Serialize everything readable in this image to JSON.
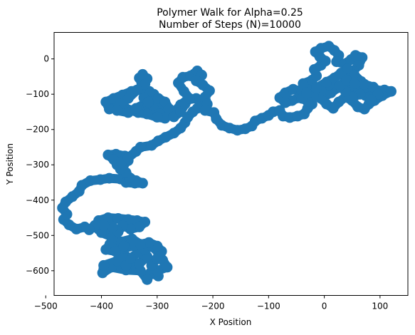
{
  "chart_data": {
    "type": "scatter",
    "title": "Polymer Walk for Alpha=0.25",
    "subtitle": "Number of Steps (N)=10000",
    "xlabel": "X Position",
    "ylabel": "Y Position",
    "xlim": [
      -485,
      150
    ],
    "ylim": [
      -670,
      75
    ],
    "x_ticks": [
      -500,
      -400,
      -300,
      -200,
      -100,
      0,
      100
    ],
    "y_ticks": [
      0,
      -100,
      -200,
      -300,
      -400,
      -500,
      -600
    ],
    "grid": false,
    "series_color": "#1f77b4",
    "walk_vertices": [
      [
        -298,
        -615
      ],
      [
        -312,
        -606
      ],
      [
        -318,
        -625
      ],
      [
        -330,
        -600
      ],
      [
        -356,
        -598
      ],
      [
        -382,
        -590
      ],
      [
        -398,
        -606
      ],
      [
        -396,
        -585
      ],
      [
        -372,
        -572
      ],
      [
        -356,
        -585
      ],
      [
        -332,
        -580
      ],
      [
        -318,
        -560
      ],
      [
        -334,
        -548
      ],
      [
        -348,
        -565
      ],
      [
        -362,
        -552
      ],
      [
        -358,
        -536
      ],
      [
        -340,
        -528
      ],
      [
        -322,
        -540
      ],
      [
        -310,
        -530
      ],
      [
        -298,
        -548
      ],
      [
        -290,
        -570
      ],
      [
        -282,
        -590
      ],
      [
        -300,
        -600
      ],
      [
        -310,
        -585
      ],
      [
        -300,
        -565
      ],
      [
        -292,
        -545
      ],
      [
        -300,
        -530
      ],
      [
        -315,
        -520
      ],
      [
        -330,
        -525
      ],
      [
        -345,
        -510
      ],
      [
        -365,
        -518
      ],
      [
        -385,
        -525
      ],
      [
        -392,
        -540
      ],
      [
        -375,
        -545
      ],
      [
        -360,
        -530
      ],
      [
        -380,
        -505
      ],
      [
        -400,
        -492
      ],
      [
        -412,
        -475
      ],
      [
        -405,
        -458
      ],
      [
        -388,
        -450
      ],
      [
        -370,
        -452
      ],
      [
        -352,
        -455
      ],
      [
        -336,
        -458
      ],
      [
        -322,
        -462
      ],
      [
        -332,
        -476
      ],
      [
        -348,
        -482
      ],
      [
        -362,
        -472
      ],
      [
        -370,
        -490
      ],
      [
        -380,
        -476
      ],
      [
        -396,
        -470
      ],
      [
        -412,
        -472
      ],
      [
        -422,
        -484
      ],
      [
        -430,
        -476
      ],
      [
        -445,
        -482
      ],
      [
        -458,
        -470
      ],
      [
        -468,
        -455
      ],
      [
        -462,
        -440
      ],
      [
        -470,
        -422
      ],
      [
        -464,
        -405
      ],
      [
        -452,
        -390
      ],
      [
        -440,
        -375
      ],
      [
        -435,
        -358
      ],
      [
        -420,
        -345
      ],
      [
        -402,
        -342
      ],
      [
        -386,
        -338
      ],
      [
        -366,
        -340
      ],
      [
        -348,
        -338
      ],
      [
        -338,
        -345
      ],
      [
        -326,
        -352
      ],
      [
        -340,
        -352
      ],
      [
        -356,
        -350
      ],
      [
        -350,
        -336
      ],
      [
        -356,
        -322
      ],
      [
        -366,
        -312
      ],
      [
        -360,
        -300
      ],
      [
        -352,
        -288
      ],
      [
        -358,
        -275
      ],
      [
        -374,
        -270
      ],
      [
        -388,
        -272
      ],
      [
        -378,
        -285
      ],
      [
        -372,
        -300
      ],
      [
        -364,
        -292
      ],
      [
        -352,
        -280
      ],
      [
        -338,
        -262
      ],
      [
        -330,
        -250
      ],
      [
        -310,
        -245
      ],
      [
        -298,
        -232
      ],
      [
        -285,
        -222
      ],
      [
        -270,
        -210
      ],
      [
        -258,
        -196
      ],
      [
        -250,
        -180
      ],
      [
        -245,
        -165
      ],
      [
        -236,
        -150
      ],
      [
        -228,
        -140
      ],
      [
        -220,
        -126
      ],
      [
        -230,
        -112
      ],
      [
        -246,
        -116
      ],
      [
        -258,
        -130
      ],
      [
        -270,
        -152
      ],
      [
        -284,
        -150
      ],
      [
        -298,
        -135
      ],
      [
        -310,
        -120
      ],
      [
        -306,
        -100
      ],
      [
        -314,
        -92
      ],
      [
        -324,
        -110
      ],
      [
        -316,
        -130
      ],
      [
        -304,
        -146
      ],
      [
        -296,
        -156
      ],
      [
        -286,
        -168
      ],
      [
        -300,
        -165
      ],
      [
        -318,
        -156
      ],
      [
        -334,
        -152
      ],
      [
        -346,
        -146
      ],
      [
        -358,
        -138
      ],
      [
        -370,
        -130
      ],
      [
        -386,
        -142
      ],
      [
        -392,
        -122
      ],
      [
        -378,
        -112
      ],
      [
        -362,
        -102
      ],
      [
        -346,
        -92
      ],
      [
        -330,
        -84
      ],
      [
        -328,
        -66
      ],
      [
        -332,
        -54
      ],
      [
        -326,
        -44
      ],
      [
        -318,
        -56
      ],
      [
        -322,
        -72
      ],
      [
        -336,
        -88
      ],
      [
        -352,
        -112
      ],
      [
        -366,
        -128
      ],
      [
        -372,
        -146
      ],
      [
        -352,
        -152
      ],
      [
        -338,
        -140
      ],
      [
        -316,
        -122
      ],
      [
        -298,
        -112
      ],
      [
        -286,
        -122
      ],
      [
        -278,
        -142
      ],
      [
        -270,
        -164
      ],
      [
        -258,
        -150
      ],
      [
        -250,
        -128
      ],
      [
        -242,
        -112
      ],
      [
        -252,
        -92
      ],
      [
        -262,
        -68
      ],
      [
        -254,
        -52
      ],
      [
        -240,
        -48
      ],
      [
        -228,
        -34
      ],
      [
        -220,
        -46
      ],
      [
        -230,
        -62
      ],
      [
        -218,
        -74
      ],
      [
        -206,
        -90
      ],
      [
        -214,
        -108
      ],
      [
        -210,
        -128
      ],
      [
        -214,
        -146
      ],
      [
        -198,
        -152
      ],
      [
        -194,
        -170
      ],
      [
        -184,
        -188
      ],
      [
        -170,
        -196
      ],
      [
        -156,
        -202
      ],
      [
        -142,
        -198
      ],
      [
        -130,
        -190
      ],
      [
        -124,
        -176
      ],
      [
        -112,
        -168
      ],
      [
        -100,
        -160
      ],
      [
        -92,
        -150
      ],
      [
        -80,
        -146
      ],
      [
        -74,
        -162
      ],
      [
        -62,
        -166
      ],
      [
        -48,
        -162
      ],
      [
        -36,
        -156
      ],
      [
        -30,
        -140
      ],
      [
        -22,
        -128
      ],
      [
        -28,
        -116
      ],
      [
        -18,
        -104
      ],
      [
        -10,
        -88
      ],
      [
        -22,
        -80
      ],
      [
        -34,
        -98
      ],
      [
        -46,
        -110
      ],
      [
        -58,
        -118
      ],
      [
        -70,
        -124
      ],
      [
        -80,
        -110
      ],
      [
        -70,
        -96
      ],
      [
        -56,
        -86
      ],
      [
        -40,
        -92
      ],
      [
        -30,
        -84
      ],
      [
        -38,
        -70
      ],
      [
        -22,
        -60
      ],
      [
        -14,
        -48
      ],
      [
        -18,
        -30
      ],
      [
        -6,
        -18
      ],
      [
        2,
        -6
      ],
      [
        -8,
        6
      ],
      [
        -16,
        20
      ],
      [
        -6,
        30
      ],
      [
        8,
        36
      ],
      [
        18,
        24
      ],
      [
        26,
        10
      ],
      [
        22,
        -8
      ],
      [
        36,
        -14
      ],
      [
        48,
        -2
      ],
      [
        56,
        10
      ],
      [
        68,
        4
      ],
      [
        62,
        -18
      ],
      [
        52,
        -34
      ],
      [
        44,
        -52
      ],
      [
        36,
        -70
      ],
      [
        50,
        -78
      ],
      [
        62,
        -92
      ],
      [
        74,
        -104
      ],
      [
        86,
        -98
      ],
      [
        96,
        -90
      ],
      [
        108,
        -88
      ],
      [
        120,
        -92
      ],
      [
        104,
        -104
      ],
      [
        90,
        -118
      ],
      [
        80,
        -128
      ],
      [
        72,
        -142
      ],
      [
        60,
        -136
      ],
      [
        50,
        -118
      ],
      [
        38,
        -108
      ],
      [
        26,
        -122
      ],
      [
        16,
        -140
      ],
      [
        4,
        -128
      ],
      [
        -6,
        -112
      ],
      [
        12,
        -96
      ],
      [
        24,
        -82
      ],
      [
        8,
        -74
      ],
      [
        -6,
        -90
      ],
      [
        -20,
        -104
      ],
      [
        -30,
        -120
      ],
      [
        -40,
        -112
      ],
      [
        -32,
        -96
      ],
      [
        -14,
        -82
      ],
      [
        4,
        -66
      ],
      [
        18,
        -54
      ],
      [
        30,
        -40
      ],
      [
        42,
        -28
      ],
      [
        54,
        -46
      ],
      [
        66,
        -64
      ],
      [
        74,
        -80
      ],
      [
        64,
        -100
      ],
      [
        50,
        -108
      ],
      [
        38,
        -92
      ],
      [
        28,
        -76
      ],
      [
        40,
        -60
      ],
      [
        54,
        -70
      ],
      [
        72,
        -72
      ],
      [
        88,
        -80
      ],
      [
        96,
        -100
      ],
      [
        84,
        -116
      ]
    ]
  }
}
